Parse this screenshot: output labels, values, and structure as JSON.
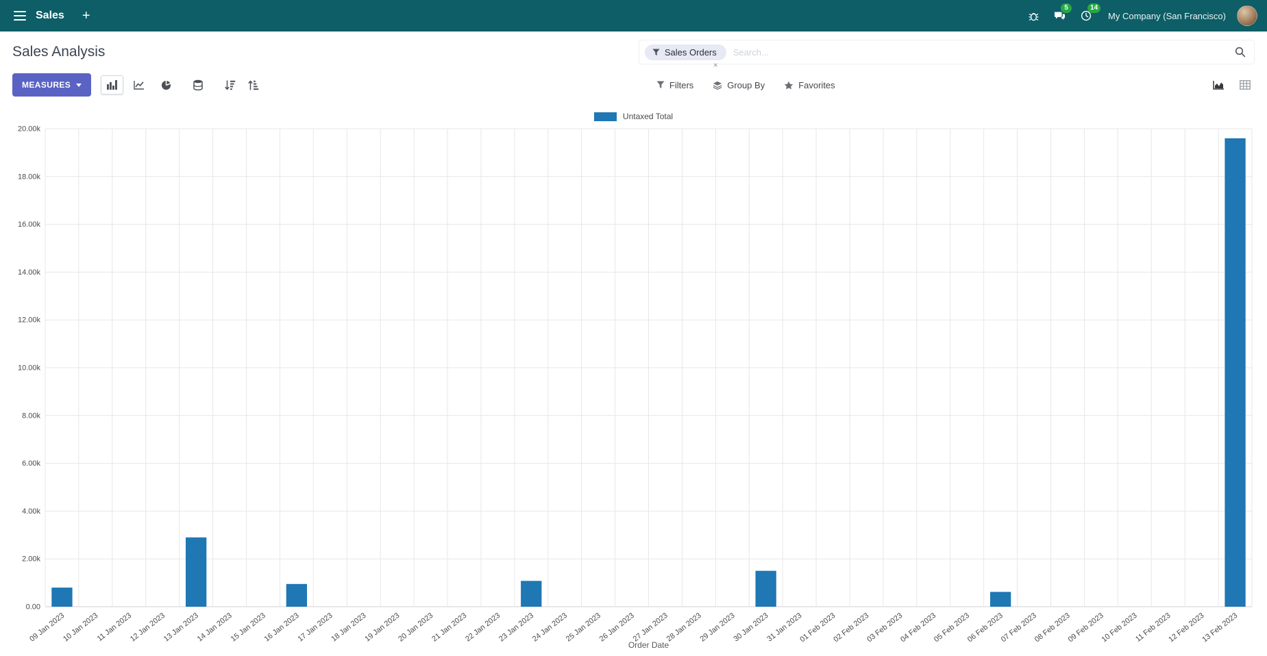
{
  "colors": {
    "navbar_bg": "#0d5e66",
    "primary_button": "#5a63c4",
    "badge_green": "#28a745",
    "bar_blue": "#1f77b4"
  },
  "navbar": {
    "app_name": "Sales",
    "plus_label": "+",
    "messages_badge": "5",
    "activities_badge": "14",
    "company": "My Company (San Francisco)"
  },
  "control_panel": {
    "title": "Sales Analysis",
    "measures_label": "MEASURES",
    "search": {
      "facet_label": "Sales Orders",
      "placeholder": "Search...",
      "remove_label": "×"
    },
    "filters_label": "Filters",
    "group_by_label": "Group By",
    "favorites_label": "Favorites"
  },
  "icons": {
    "apps_menu": "hamburger",
    "new_tab": "plus",
    "debug": "bug",
    "messages": "chat-bubbles",
    "activities": "clock",
    "search": "magnifier",
    "search_facet": "funnel",
    "filters": "funnel",
    "group_by": "layers",
    "favorites": "star",
    "chart_bar": "bar-chart",
    "chart_line": "line-chart",
    "chart_pie": "pie-chart",
    "stacked": "database",
    "sort_desc": "sort-amount-desc",
    "sort_asc": "sort-amount-asc",
    "view_graph": "area-chart",
    "view_pivot": "table-grid"
  },
  "chart_data": {
    "type": "bar",
    "title": "",
    "xlabel": "Order Date",
    "ylabel": "",
    "ylim": [
      0,
      20000
    ],
    "ytick_step": 2000,
    "ytick_labels": [
      "0.00",
      "2.00k",
      "4.00k",
      "6.00k",
      "8.00k",
      "10.00k",
      "12.00k",
      "14.00k",
      "16.00k",
      "18.00k",
      "20.00k"
    ],
    "grid": true,
    "legend_position": "top-center",
    "categories": [
      "09 Jan 2023",
      "10 Jan 2023",
      "11 Jan 2023",
      "12 Jan 2023",
      "13 Jan 2023",
      "14 Jan 2023",
      "15 Jan 2023",
      "16 Jan 2023",
      "17 Jan 2023",
      "18 Jan 2023",
      "19 Jan 2023",
      "20 Jan 2023",
      "21 Jan 2023",
      "22 Jan 2023",
      "23 Jan 2023",
      "24 Jan 2023",
      "25 Jan 2023",
      "26 Jan 2023",
      "27 Jan 2023",
      "28 Jan 2023",
      "29 Jan 2023",
      "30 Jan 2023",
      "31 Jan 2023",
      "01 Feb 2023",
      "02 Feb 2023",
      "03 Feb 2023",
      "04 Feb 2023",
      "05 Feb 2023",
      "06 Feb 2023",
      "07 Feb 2023",
      "08 Feb 2023",
      "09 Feb 2023",
      "10 Feb 2023",
      "11 Feb 2023",
      "12 Feb 2023",
      "13 Feb 2023"
    ],
    "series": [
      {
        "name": "Untaxed Total",
        "color": "#1f77b4",
        "values": [
          800,
          0,
          0,
          0,
          2900,
          0,
          0,
          950,
          0,
          0,
          0,
          0,
          0,
          0,
          1080,
          0,
          0,
          0,
          0,
          0,
          0,
          1500,
          0,
          0,
          0,
          0,
          0,
          0,
          620,
          0,
          0,
          0,
          0,
          0,
          0,
          19600
        ]
      }
    ]
  }
}
